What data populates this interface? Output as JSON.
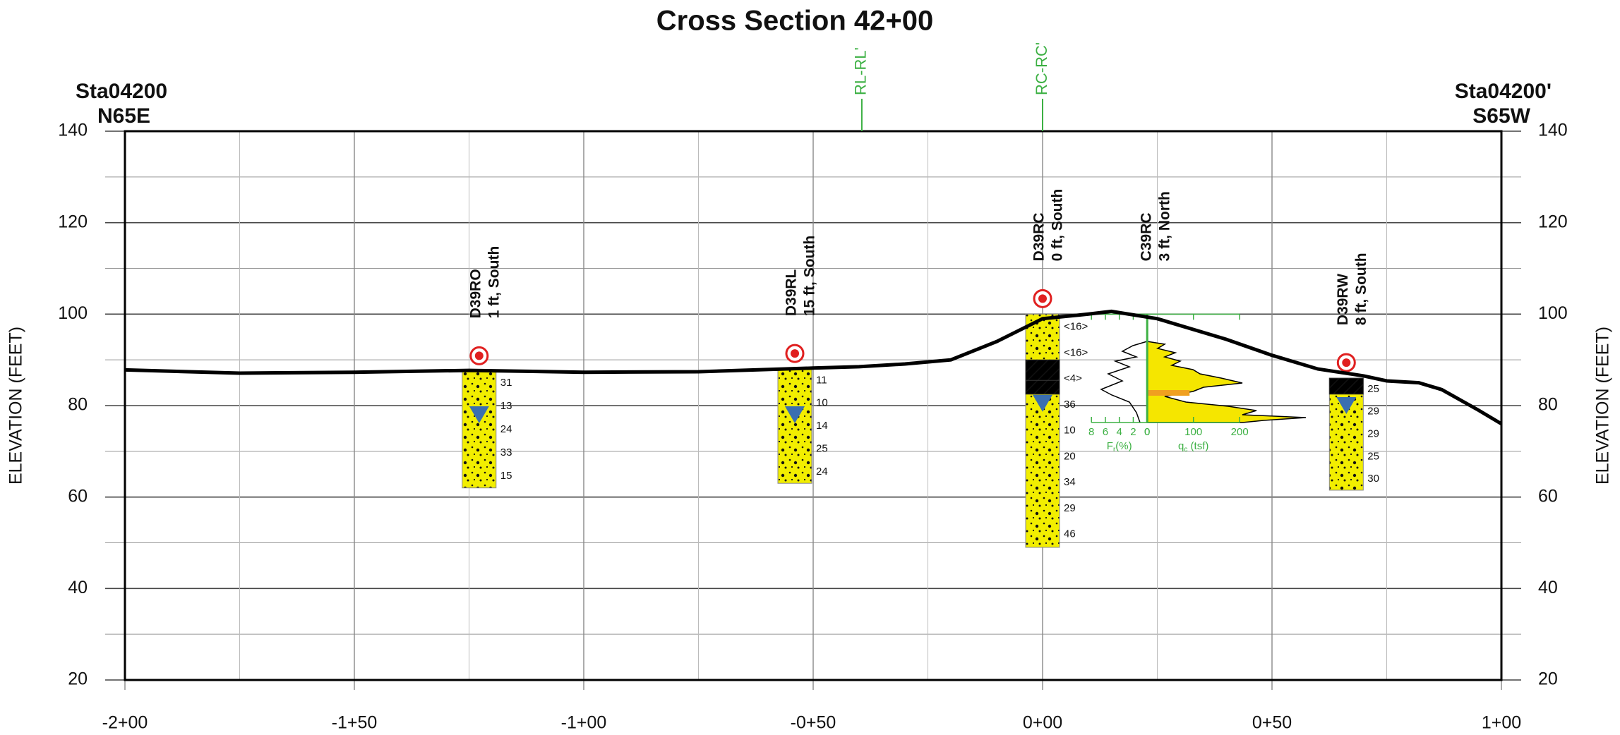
{
  "chart_data": {
    "type": "cross-section",
    "title": "Cross Section 42+00",
    "left_label": [
      "Sta04200",
      "N65E"
    ],
    "right_label": [
      "Sta04200'",
      "S65W"
    ],
    "y_label": "ELEVATION (FEET)",
    "xlim": [
      -200,
      100
    ],
    "ylim": [
      20,
      140
    ],
    "xticks": [
      {
        "value": -200,
        "label": "-2+00"
      },
      {
        "value": -150,
        "label": "-1+50"
      },
      {
        "value": -100,
        "label": "-1+00"
      },
      {
        "value": -50,
        "label": "-0+50"
      },
      {
        "value": 0,
        "label": "0+00"
      },
      {
        "value": 50,
        "label": "0+50"
      },
      {
        "value": 100,
        "label": "1+00"
      }
    ],
    "yticks": [
      20,
      40,
      60,
      80,
      100,
      120,
      140
    ],
    "grid": true,
    "ground": {
      "color": "#000000",
      "x": [
        -200,
        -175,
        -150,
        -125,
        -100,
        -75,
        -50,
        -40,
        -30,
        -20,
        -10,
        0,
        10,
        15,
        25,
        40,
        50,
        60,
        70,
        75,
        82,
        87,
        95,
        100
      ],
      "values": [
        87.8,
        87.1,
        87.3,
        87.7,
        87.3,
        87.4,
        88.2,
        88.5,
        89.1,
        90,
        94,
        99,
        100,
        100.6,
        99,
        94.5,
        91,
        88,
        86.5,
        85.4,
        85,
        83.5,
        79,
        76
      ]
    },
    "guides": [
      {
        "label": "RL-RL'",
        "x": -39.4
      },
      {
        "label": "RC-RC'",
        "x": 0
      }
    ],
    "guide_color": "#3cb043",
    "boreholes": [
      {
        "id": "D39RO",
        "offset": "1 ft, South",
        "x": -122.8,
        "top": 87.5,
        "bottom": 62,
        "water": 78,
        "blow_counts": [
          "31",
          "13",
          "24",
          "33",
          "15"
        ],
        "layers": []
      },
      {
        "id": "D39RL",
        "offset": "15 ft, South",
        "x": -54,
        "top": 88,
        "bottom": 63,
        "water": 78,
        "blow_counts": [
          "11",
          "10",
          "14",
          "25",
          "24"
        ],
        "layers": []
      },
      {
        "id": "D39RC",
        "offset": "0 ft, South",
        "x": 0,
        "top": 100,
        "bottom": 49,
        "water": 80.5,
        "blow_counts": [
          "<16>",
          "<16>",
          "<4>",
          "36",
          "10",
          "20",
          "34",
          "29",
          "46"
        ],
        "layers": [
          {
            "top": 90,
            "bottom": 85.5,
            "color": "#e02020"
          },
          {
            "top": 85.5,
            "bottom": 82.5,
            "color": "#3faa3f"
          }
        ]
      },
      {
        "id": "D39RW",
        "offset": "8 ft, South",
        "x": 66.2,
        "top": 86,
        "bottom": 61.5,
        "water": 80,
        "blow_counts": [
          "25",
          "29",
          "29",
          "25",
          "30"
        ],
        "layers": [
          {
            "top": 86,
            "bottom": 82.5,
            "color": "#b8b800"
          }
        ]
      }
    ],
    "cpt": {
      "id": "C39RC",
      "offset": "3 ft, North",
      "x": 22.8,
      "top": 100,
      "bottom": 76.3,
      "fr_ticks": [
        8,
        6,
        4,
        2,
        0
      ],
      "qc_ticks": [
        0,
        100,
        200
      ],
      "fr_label": "F",
      "fr_sub": "r",
      "fr_unit": "(%)",
      "qc_label": "q",
      "qc_sub": "c",
      "qc_unit": " (tsf)"
    }
  }
}
